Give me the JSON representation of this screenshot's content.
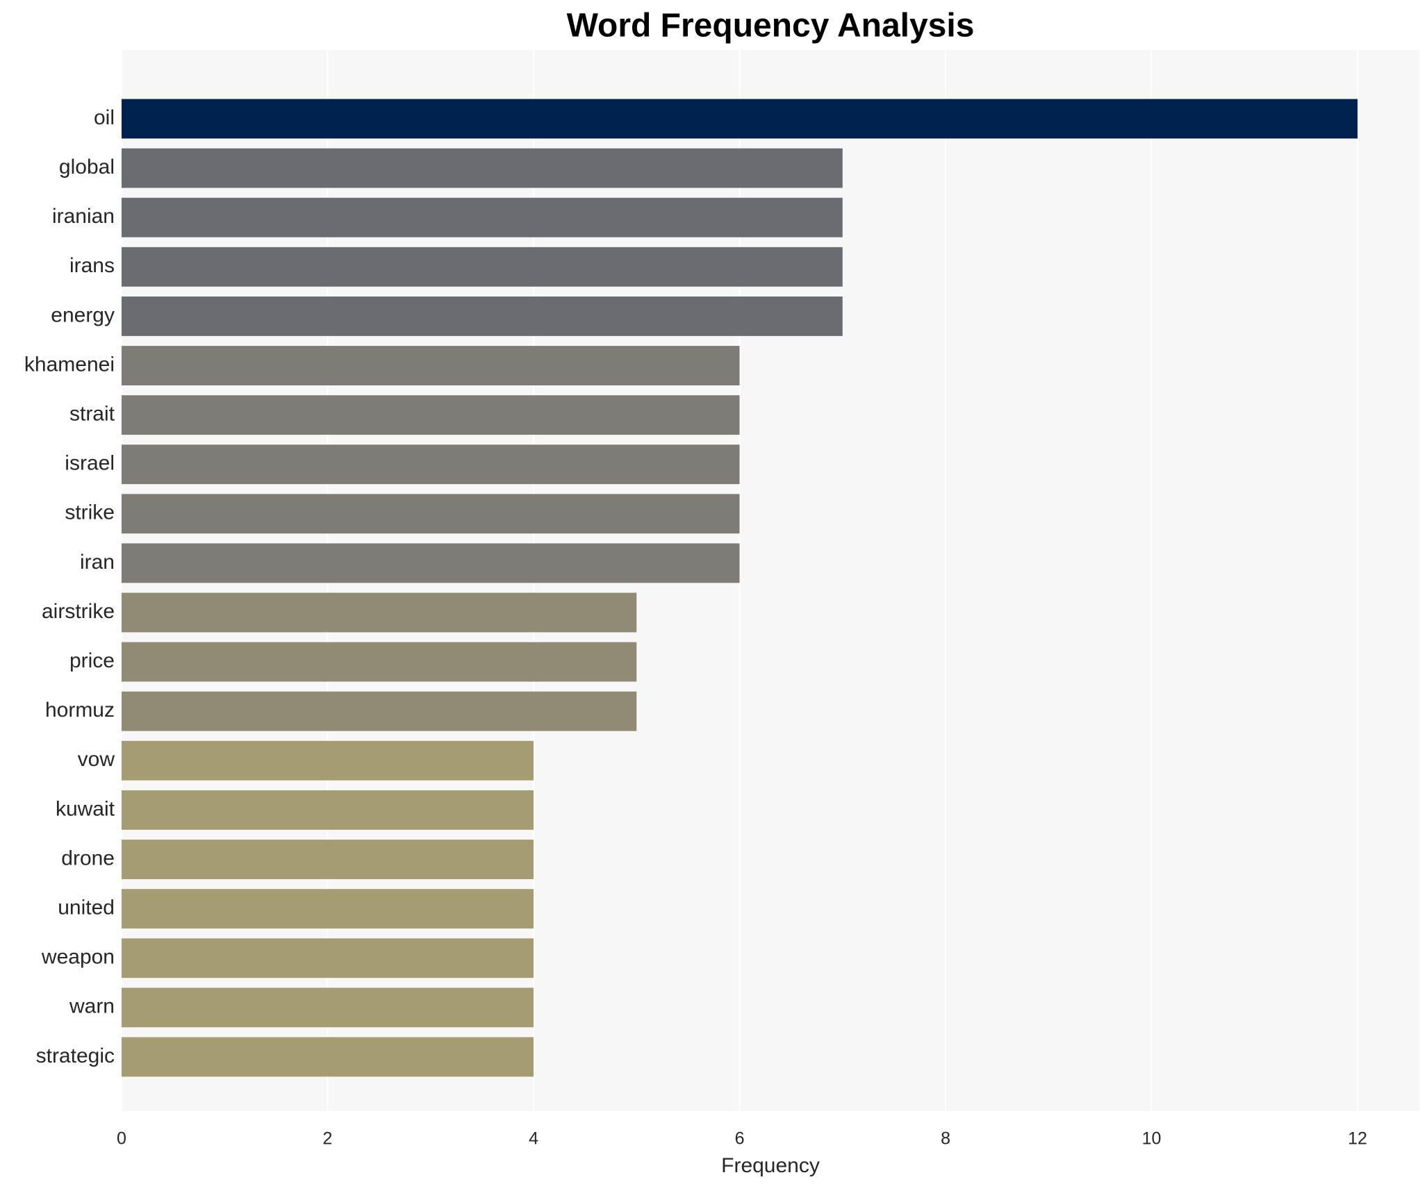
{
  "chart_data": {
    "type": "barh",
    "title": "Word Frequency Analysis",
    "x_label": "Frequency",
    "categories": [
      "oil",
      "global",
      "iranian",
      "irans",
      "energy",
      "khamenei",
      "strait",
      "israel",
      "strike",
      "iran",
      "airstrike",
      "price",
      "hormuz",
      "vow",
      "kuwait",
      "drone",
      "united",
      "weapon",
      "warn",
      "strategic"
    ],
    "values": [
      12,
      7,
      7,
      7,
      7,
      6,
      6,
      6,
      6,
      6,
      5,
      5,
      5,
      4,
      4,
      4,
      4,
      4,
      4,
      4
    ],
    "colors": [
      "#00224e",
      "#6b6c72",
      "#6b6c72",
      "#6b6c72",
      "#6b6c72",
      "#7e7c77",
      "#7e7c77",
      "#7e7c77",
      "#7e7c77",
      "#7e7c77",
      "#918b76",
      "#918b76",
      "#918b76",
      "#a59c74",
      "#a59c74",
      "#a59c74",
      "#a59c74",
      "#a59c74",
      "#a59c74",
      "#a59c74"
    ],
    "xlim": [
      0,
      12.6
    ],
    "xticks": [
      0,
      2,
      4,
      6,
      8,
      10,
      12
    ],
    "grid": true
  }
}
